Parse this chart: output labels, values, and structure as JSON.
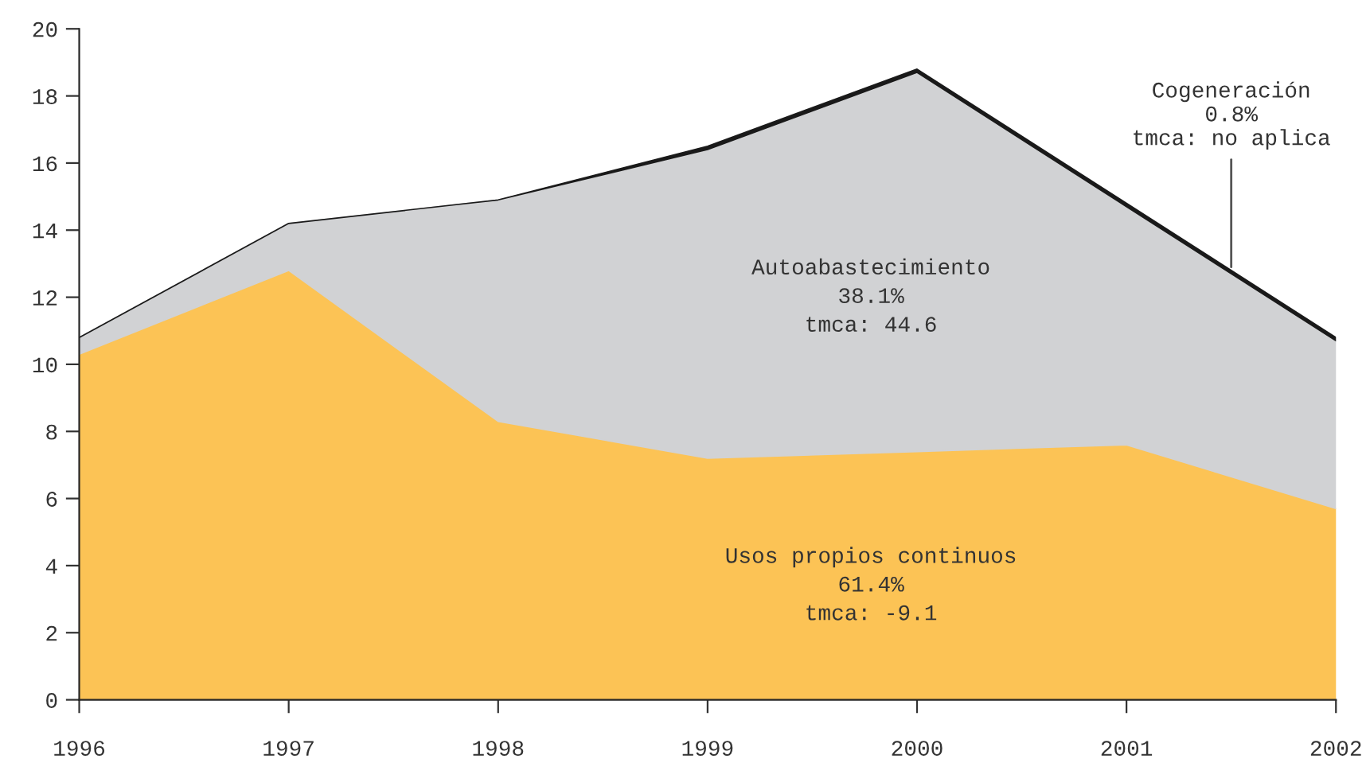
{
  "chart_data": {
    "type": "area",
    "stacked": true,
    "x": [
      1996,
      1997,
      1998,
      1999,
      2000,
      2001,
      2002
    ],
    "series": [
      {
        "color": "#fcc355",
        "values": [
          10.3,
          12.8,
          8.3,
          7.2,
          7.4,
          7.6,
          5.7
        ]
      },
      {
        "color": "#d1d2d4",
        "values": [
          0.5,
          1.4,
          6.6,
          9.2,
          11.3,
          7.1,
          5.0
        ]
      },
      {
        "color": "#1a1a1a",
        "values": [
          0,
          0,
          0,
          0.1,
          0.1,
          0.1,
          0.1
        ]
      }
    ],
    "xlim": [
      1996,
      2002
    ],
    "xticks": [
      1996,
      1997,
      1998,
      1999,
      2000,
      2001,
      2002
    ],
    "ylim": [
      0,
      20
    ],
    "yticks": [
      0,
      2,
      4,
      6,
      8,
      10,
      12,
      14,
      16,
      18,
      20
    ],
    "grid": false,
    "legend": false,
    "annotations": [
      "Usos propios continuos\n61.4%\ntmca: -9.1",
      "Autoabastecimiento\n38.1%\ntmca: 44.6",
      {
        "text": "Cogeneración\n0.8%\ntmca: no aplica",
        "x": 2001.5,
        "y": 12.9
      }
    ]
  }
}
